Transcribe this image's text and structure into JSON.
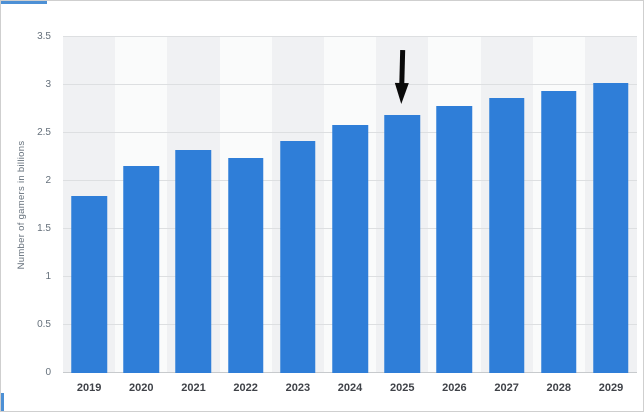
{
  "chart_data": {
    "type": "bar",
    "title": "",
    "xlabel": "",
    "ylabel": "Number of gamers in billions",
    "categories": [
      "2019",
      "2020",
      "2021",
      "2022",
      "2023",
      "2024",
      "2025",
      "2026",
      "2027",
      "2028",
      "2029"
    ],
    "values": [
      1.84,
      2.16,
      2.32,
      2.24,
      2.42,
      2.58,
      2.69,
      2.78,
      2.86,
      2.94,
      3.02
    ],
    "ylim": [
      0,
      3.5
    ],
    "yticks": [
      0,
      0.5,
      1,
      1.5,
      2,
      2.5,
      3,
      3.5
    ],
    "grid": true,
    "legend": "none",
    "bar_color": "#2f7ed8",
    "band_colors": [
      "#f0f1f3",
      "#fafbfb"
    ],
    "annotation": {
      "shape": "arrow-down",
      "category": "2025",
      "color": "#0a0a0a"
    }
  }
}
